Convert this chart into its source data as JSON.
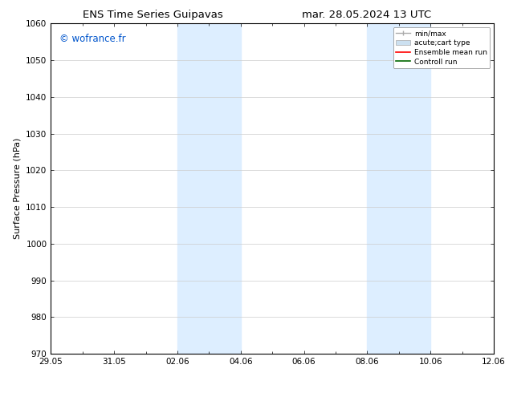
{
  "title_left": "ENS Time Series Guipavas",
  "title_right": "mar. 28.05.2024 13 UTC",
  "ylabel": "Surface Pressure (hPa)",
  "ylim": [
    970,
    1060
  ],
  "yticks": [
    970,
    980,
    990,
    1000,
    1010,
    1020,
    1030,
    1040,
    1050,
    1060
  ],
  "xtick_labels": [
    "29.05",
    "31.05",
    "02.06",
    "04.06",
    "06.06",
    "08.06",
    "10.06",
    "12.06"
  ],
  "xtick_positions": [
    0,
    2,
    4,
    6,
    8,
    10,
    12,
    14
  ],
  "xlim": [
    0,
    14
  ],
  "shaded_regions": [
    {
      "x_start": 4,
      "x_end": 6,
      "color": "#ddeeff"
    },
    {
      "x_start": 10,
      "x_end": 12,
      "color": "#ddeeff"
    }
  ],
  "watermark_text": "© wofrance.fr",
  "watermark_color": "#0055cc",
  "bg_color": "#ffffff",
  "plot_bg_color": "#ffffff",
  "grid_color": "#cccccc",
  "title_fontsize": 9.5,
  "tick_fontsize": 7.5,
  "ylabel_fontsize": 8,
  "watermark_fontsize": 8.5,
  "legend_fontsize": 6.5
}
